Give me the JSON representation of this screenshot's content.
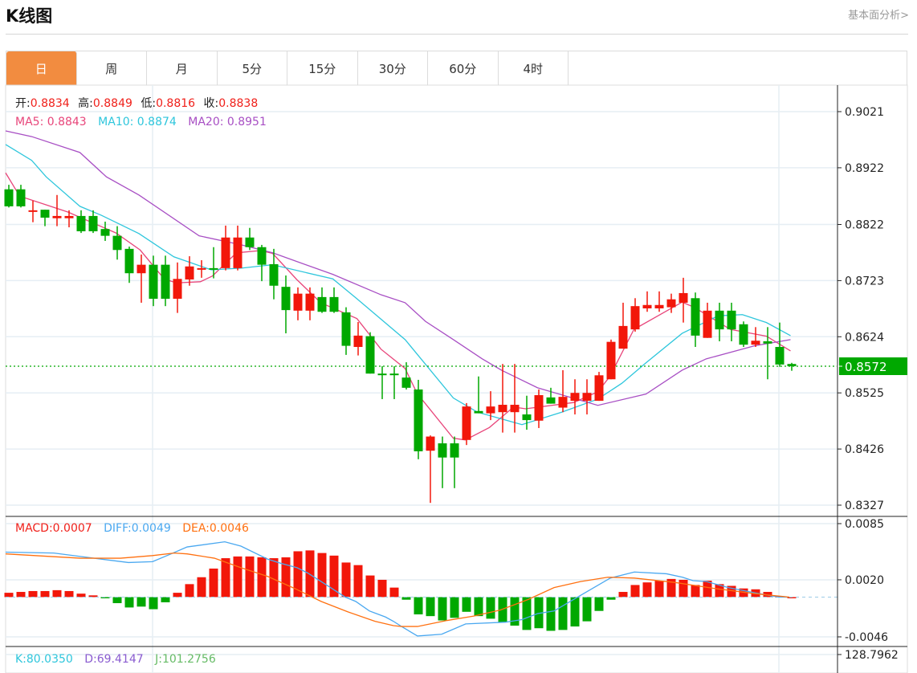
{
  "header": {
    "title": "K线图",
    "fundamental_link": "基本面分析>"
  },
  "tabs": [
    {
      "label": "日",
      "active": true
    },
    {
      "label": "周"
    },
    {
      "label": "月"
    },
    {
      "label": "5分"
    },
    {
      "label": "15分"
    },
    {
      "label": "30分"
    },
    {
      "label": "60分"
    },
    {
      "label": "4时"
    }
  ],
  "ohlc": {
    "open_label": "开:",
    "open": "0.8834",
    "high_label": "高:",
    "high": "0.8849",
    "low_label": "低:",
    "low": "0.8816",
    "close_label": "收:",
    "close": "0.8838"
  },
  "ma_legend": {
    "ma5": "MA5: 0.8843",
    "ma10": "MA10: 0.8874",
    "ma20": "MA20: 0.8951"
  },
  "macd_legend": {
    "macd": "MACD:0.0007",
    "diff": "DIFF:0.0049",
    "dea": "DEA:0.0046"
  },
  "kdj_legend": {
    "k": "K:80.0350",
    "d": "D:69.4147",
    "j": "J:101.2756"
  },
  "colors": {
    "up": "#f2170a",
    "down": "#00a800",
    "ma5": "#e8457a",
    "ma10": "#2ec6dc",
    "ma20": "#a84fc4",
    "diff": "#4aa8f0",
    "dea": "#ff7010",
    "active_tab": "#f28c40",
    "value_red": "#f0201a"
  },
  "chart_data": [
    {
      "type": "candlestick",
      "title": "K线图",
      "price_axis_ticks": [
        "0.9021",
        "0.8922",
        "0.8822",
        "0.8723",
        "0.8624",
        "0.8525",
        "0.8426",
        "0.8327"
      ],
      "ylim": [
        0.8327,
        0.9021
      ],
      "current_price": "0.8572",
      "candles_ochl_note": "each candle is [open, close, high, low]",
      "candles": [
        [
          0.8884,
          0.8854,
          0.8892,
          0.8852
        ],
        [
          0.8884,
          0.8854,
          0.8892,
          0.8852
        ],
        [
          0.8845,
          0.8847,
          0.8864,
          0.8826
        ],
        [
          0.8848,
          0.8834,
          0.8848,
          0.8819
        ],
        [
          0.8833,
          0.8837,
          0.8874,
          0.8819
        ],
        [
          0.8833,
          0.8837,
          0.8847,
          0.8817
        ],
        [
          0.8837,
          0.881,
          0.8847,
          0.8807
        ],
        [
          0.8837,
          0.881,
          0.8847,
          0.8807
        ],
        [
          0.8814,
          0.8802,
          0.8827,
          0.8793
        ],
        [
          0.8802,
          0.8777,
          0.8819,
          0.876
        ],
        [
          0.8779,
          0.8736,
          0.8783,
          0.8719
        ],
        [
          0.8736,
          0.8751,
          0.8769,
          0.8684
        ],
        [
          0.8751,
          0.8691,
          0.8767,
          0.8678
        ],
        [
          0.8751,
          0.8691,
          0.8767,
          0.8678
        ],
        [
          0.8691,
          0.8726,
          0.8755,
          0.8666
        ],
        [
          0.8725,
          0.8748,
          0.8766,
          0.8714
        ],
        [
          0.8743,
          0.8745,
          0.8759,
          0.8728
        ],
        [
          0.8745,
          0.8743,
          0.8782,
          0.8727
        ],
        [
          0.8745,
          0.8799,
          0.882,
          0.8741
        ],
        [
          0.8745,
          0.8799,
          0.882,
          0.8741
        ],
        [
          0.8799,
          0.8782,
          0.8816,
          0.8777
        ],
        [
          0.8782,
          0.8751,
          0.8786,
          0.8722
        ],
        [
          0.8752,
          0.8714,
          0.8779,
          0.869
        ],
        [
          0.8712,
          0.8671,
          0.8732,
          0.863
        ],
        [
          0.867,
          0.87,
          0.8711,
          0.8653
        ],
        [
          0.867,
          0.87,
          0.8711,
          0.8653
        ],
        [
          0.8694,
          0.8668,
          0.8711,
          0.8666
        ],
        [
          0.8694,
          0.8668,
          0.8711,
          0.8666
        ],
        [
          0.8667,
          0.8608,
          0.8676,
          0.8592
        ],
        [
          0.8606,
          0.8626,
          0.865,
          0.8591
        ],
        [
          0.8625,
          0.8559,
          0.8632,
          0.8559
        ],
        [
          0.8559,
          0.8558,
          0.8572,
          0.8514
        ],
        [
          0.8559,
          0.8558,
          0.8572,
          0.8514
        ],
        [
          0.8552,
          0.8534,
          0.8579,
          0.8531
        ],
        [
          0.8531,
          0.8422,
          0.8548,
          0.8408
        ],
        [
          0.8423,
          0.8448,
          0.845,
          0.8331
        ],
        [
          0.8436,
          0.8411,
          0.8448,
          0.8357
        ],
        [
          0.8436,
          0.8411,
          0.8448,
          0.8357
        ],
        [
          0.8442,
          0.8501,
          0.8507,
          0.8433
        ],
        [
          0.8493,
          0.8489,
          0.8554,
          0.8489
        ],
        [
          0.8489,
          0.8501,
          0.8528,
          0.8477
        ],
        [
          0.8491,
          0.8504,
          0.8576,
          0.8455
        ],
        [
          0.8491,
          0.8504,
          0.8576,
          0.8455
        ],
        [
          0.8487,
          0.8477,
          0.852,
          0.846
        ],
        [
          0.8476,
          0.8521,
          0.8531,
          0.8463
        ],
        [
          0.8517,
          0.8506,
          0.8534,
          0.8506
        ],
        [
          0.8499,
          0.8518,
          0.8565,
          0.8491
        ],
        [
          0.8511,
          0.8525,
          0.8549,
          0.8487
        ],
        [
          0.8511,
          0.8525,
          0.8549,
          0.8487
        ],
        [
          0.8511,
          0.8556,
          0.8562,
          0.8511
        ],
        [
          0.8549,
          0.8615,
          0.8619,
          0.8549
        ],
        [
          0.8603,
          0.8643,
          0.8684,
          0.8603
        ],
        [
          0.8637,
          0.8678,
          0.8692,
          0.8633
        ],
        [
          0.8674,
          0.868,
          0.8704,
          0.8668
        ],
        [
          0.8674,
          0.868,
          0.8704,
          0.8668
        ],
        [
          0.8676,
          0.869,
          0.87,
          0.8666
        ],
        [
          0.8684,
          0.8701,
          0.8728,
          0.8649
        ],
        [
          0.8692,
          0.8626,
          0.8702,
          0.8606
        ],
        [
          0.8622,
          0.867,
          0.8684,
          0.8622
        ],
        [
          0.867,
          0.8637,
          0.8684,
          0.8616
        ],
        [
          0.867,
          0.8637,
          0.8684,
          0.8616
        ],
        [
          0.8646,
          0.861,
          0.8651,
          0.8606
        ],
        [
          0.861,
          0.8617,
          0.8641,
          0.8606
        ],
        [
          0.8616,
          0.8612,
          0.8641,
          0.8549
        ],
        [
          0.8606,
          0.8575,
          0.8649,
          0.8571
        ],
        [
          0.8576,
          0.8572,
          0.8578,
          0.8564
        ]
      ],
      "ma_series": [
        {
          "name": "MA5",
          "points": [
            [
              0.73,
              0.8913
            ],
            [
              1.9,
              0.8872
            ],
            [
              5.9,
              0.8844
            ],
            [
              9.9,
              0.8807
            ],
            [
              11.9,
              0.8777
            ],
            [
              13.9,
              0.8726
            ],
            [
              14.9,
              0.8719
            ],
            [
              16.9,
              0.8721
            ],
            [
              17.9,
              0.8731
            ],
            [
              19.9,
              0.8772
            ],
            [
              21.9,
              0.8776
            ],
            [
              22.9,
              0.8771
            ],
            [
              24.9,
              0.8725
            ],
            [
              26.9,
              0.8684
            ],
            [
              29.9,
              0.8656
            ],
            [
              31.9,
              0.8602
            ],
            [
              33.9,
              0.8568
            ],
            [
              34.9,
              0.8524
            ],
            [
              37.9,
              0.8445
            ],
            [
              38.9,
              0.8442
            ],
            [
              40.9,
              0.8464
            ],
            [
              42.9,
              0.85
            ],
            [
              43.9,
              0.8497
            ],
            [
              47.9,
              0.8508
            ],
            [
              49.9,
              0.8527
            ],
            [
              50.9,
              0.8554
            ],
            [
              52.9,
              0.8637
            ],
            [
              54.9,
              0.8661
            ],
            [
              56.9,
              0.8685
            ],
            [
              57.9,
              0.8676
            ],
            [
              60.9,
              0.8637
            ],
            [
              63.9,
              0.8625
            ],
            [
              65.9,
              0.8599
            ]
          ]
        },
        {
          "name": "MA10",
          "points": [
            [
              0.27,
              0.8963
            ],
            [
              2.9,
              0.8935
            ],
            [
              4.1,
              0.8906
            ],
            [
              6.9,
              0.8854
            ],
            [
              8.7,
              0.8838
            ],
            [
              11.8,
              0.8806
            ],
            [
              14.7,
              0.8765
            ],
            [
              17.8,
              0.8742
            ],
            [
              20.3,
              0.8745
            ],
            [
              22.9,
              0.8751
            ],
            [
              27.9,
              0.8726
            ],
            [
              29.9,
              0.8691
            ],
            [
              33.9,
              0.8619
            ],
            [
              37.9,
              0.8516
            ],
            [
              39.9,
              0.8491
            ],
            [
              43.6,
              0.8469
            ],
            [
              46.9,
              0.8491
            ],
            [
              49.9,
              0.8514
            ],
            [
              51.9,
              0.8542
            ],
            [
              53.9,
              0.8578
            ],
            [
              56.9,
              0.863
            ],
            [
              59.9,
              0.8661
            ],
            [
              61.9,
              0.8663
            ],
            [
              63.9,
              0.8649
            ],
            [
              65.9,
              0.8626
            ]
          ]
        },
        {
          "name": "MA20",
          "points": [
            [
              0.27,
              0.8987
            ],
            [
              2.9,
              0.8977
            ],
            [
              6.9,
              0.8949
            ],
            [
              9.1,
              0.8906
            ],
            [
              11.8,
              0.8874
            ],
            [
              16.8,
              0.8802
            ],
            [
              20.3,
              0.8786
            ],
            [
              22.9,
              0.8772
            ],
            [
              27.9,
              0.8734
            ],
            [
              31.9,
              0.8698
            ],
            [
              33.9,
              0.8684
            ],
            [
              35.6,
              0.8651
            ],
            [
              37.9,
              0.8619
            ],
            [
              40.3,
              0.8585
            ],
            [
              41.9,
              0.8565
            ],
            [
              44.9,
              0.8534
            ],
            [
              49.9,
              0.8503
            ],
            [
              53.9,
              0.8523
            ],
            [
              56.9,
              0.8565
            ],
            [
              58.9,
              0.8585
            ],
            [
              62.9,
              0.8608
            ],
            [
              65.9,
              0.8619
            ]
          ]
        }
      ]
    },
    {
      "type": "bar",
      "title": "MACD",
      "axis_ticks": [
        "0.0085",
        "0.0020",
        "-0.0046"
      ],
      "ylim": [
        -0.0046,
        0.0085
      ],
      "histogram": [
        0.0005,
        0.0006,
        0.0007,
        0.0007,
        0.0008,
        0.0007,
        0.0004,
        0.0002,
        -0.0001,
        -0.0007,
        -0.0012,
        -0.0011,
        -0.0014,
        -0.0006,
        0.0005,
        0.0015,
        0.0023,
        0.0033,
        0.0045,
        0.0047,
        0.0047,
        0.0046,
        0.0045,
        0.0046,
        0.0053,
        0.0054,
        0.0051,
        0.0048,
        0.004,
        0.0037,
        0.0025,
        0.002,
        0.0011,
        -0.0003,
        -0.002,
        -0.0022,
        -0.0027,
        -0.0024,
        -0.0017,
        -0.0022,
        -0.0025,
        -0.0029,
        -0.0033,
        -0.0038,
        -0.0036,
        -0.0039,
        -0.0038,
        -0.0034,
        -0.0028,
        -0.0016,
        -0.0003,
        0.0006,
        0.0014,
        0.0017,
        0.0019,
        0.0021,
        0.002,
        0.0014,
        0.0019,
        0.0015,
        0.0013,
        0.001,
        0.0009,
        0.0006,
        0.0001,
        0.0
      ],
      "diff": [
        [
          0.73,
          0.0052
        ],
        [
          4.73,
          0.0051
        ],
        [
          6.93,
          0.0047
        ],
        [
          10.93,
          0.004
        ],
        [
          12.93,
          0.0041
        ],
        [
          14.47,
          0.005
        ],
        [
          15.8,
          0.0058
        ],
        [
          18.93,
          0.0064
        ],
        [
          20.27,
          0.0059
        ],
        [
          22.47,
          0.0044
        ],
        [
          23.6,
          0.0039
        ],
        [
          24.93,
          0.0034
        ],
        [
          25.8,
          0.0028
        ],
        [
          27.6,
          0.0012
        ],
        [
          28.93,
          0.0
        ],
        [
          29.8,
          -0.0005
        ],
        [
          30.93,
          -0.0016
        ],
        [
          32.27,
          -0.0023
        ],
        [
          32.93,
          -0.0028
        ],
        [
          33.6,
          -0.0034
        ],
        [
          34.93,
          -0.0045
        ],
        [
          36.93,
          -0.0043
        ],
        [
          38.93,
          -0.0031
        ],
        [
          42.27,
          -0.0029
        ],
        [
          43.6,
          -0.0026
        ],
        [
          44.93,
          -0.0019
        ],
        [
          46.27,
          -0.0016
        ],
        [
          48.47,
          0.0002
        ],
        [
          50.93,
          0.0022
        ],
        [
          52.93,
          0.0029
        ],
        [
          55.6,
          0.0027
        ],
        [
          56.93,
          0.0023
        ],
        [
          57.8,
          0.0019
        ],
        [
          58.93,
          0.0018
        ],
        [
          60.73,
          0.0011
        ],
        [
          62.93,
          0.0005
        ],
        [
          64.93,
          0.0
        ],
        [
          65.8,
          0.0
        ]
      ],
      "dea": [
        [
          0.73,
          0.005
        ],
        [
          6.93,
          0.0045
        ],
        [
          10.27,
          0.0045
        ],
        [
          12.93,
          0.0048
        ],
        [
          14.73,
          0.0051
        ],
        [
          15.8,
          0.005
        ],
        [
          18.07,
          0.0045
        ],
        [
          20.27,
          0.0034
        ],
        [
          22.47,
          0.0024
        ],
        [
          24.73,
          0.001
        ],
        [
          26.93,
          -0.0005
        ],
        [
          29.13,
          -0.0017
        ],
        [
          31.4,
          -0.0028
        ],
        [
          32.93,
          -0.0033
        ],
        [
          33.6,
          -0.0034
        ],
        [
          34.93,
          -0.0034
        ],
        [
          37.4,
          -0.0027
        ],
        [
          39.6,
          -0.0022
        ],
        [
          41.8,
          -0.0015
        ],
        [
          44.07,
          -0.0003
        ],
        [
          46.27,
          0.0011
        ],
        [
          48.47,
          0.0018
        ],
        [
          50.73,
          0.0023
        ],
        [
          52.93,
          0.0022
        ],
        [
          56.27,
          0.0017
        ],
        [
          59.6,
          0.001
        ],
        [
          62.93,
          0.0004
        ],
        [
          65.8,
          0.0
        ]
      ]
    },
    {
      "type": "line",
      "title": "KDJ",
      "axis_ticks": [
        "128.7962"
      ]
    }
  ]
}
